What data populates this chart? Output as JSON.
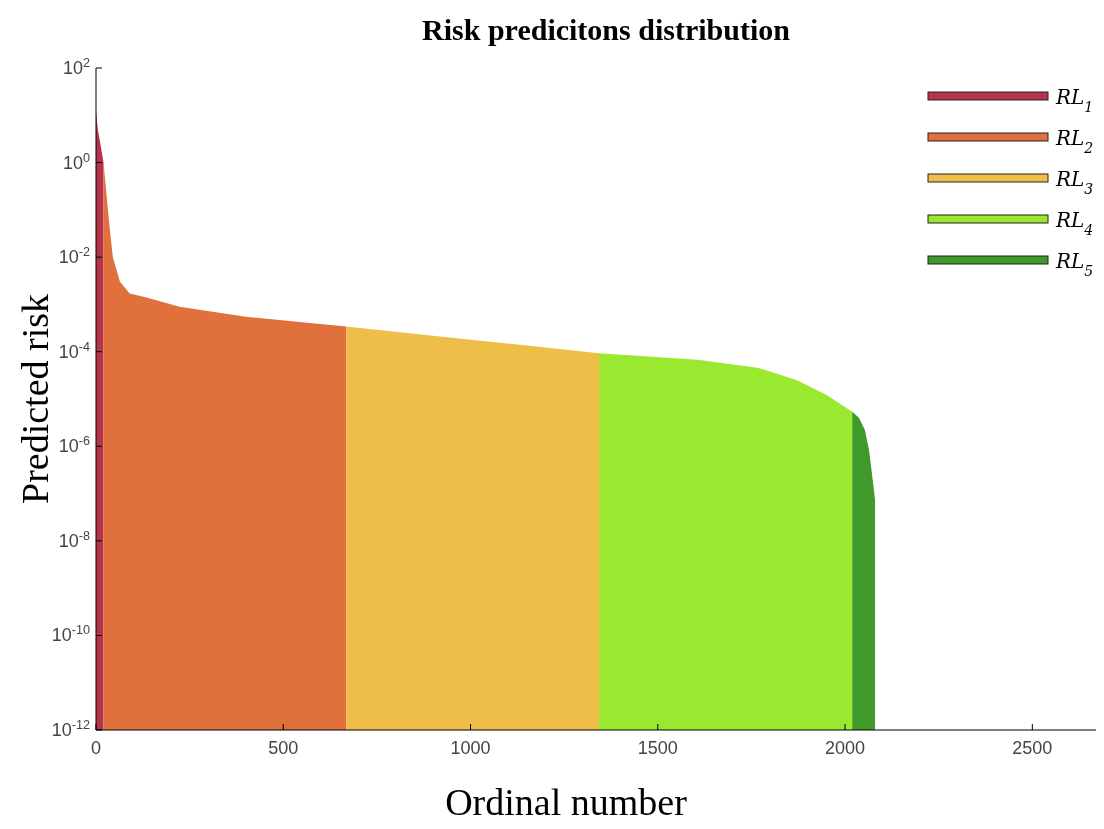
{
  "chart_data": {
    "type": "area",
    "title": "Risk predicitons distribution",
    "xlabel": "Ordinal number",
    "ylabel": "Predicted risk",
    "log": "y",
    "legend": "top right",
    "grid": false,
    "xlim": [
      0,
      2670
    ],
    "xticks": [
      0,
      500,
      1000,
      1500,
      2000,
      2500
    ],
    "ylim": [
      1e-12,
      100
    ],
    "yticks": [
      {
        "value": 100,
        "label": "10$^{2}$"
      },
      {
        "value": 1,
        "label": "10$^{0}$"
      },
      {
        "value": 0.01,
        "label": "10$^{-2}$"
      },
      {
        "value": 0.0001,
        "label": "10$^{-4}$"
      },
      {
        "value": 1e-06,
        "label": "10$^{-6}$"
      },
      {
        "value": 1e-08,
        "label": "10$^{-8}$"
      },
      {
        "value": 1e-10,
        "label": "10$^{-10}$"
      },
      {
        "value": 1e-12,
        "label": "10$^{-12}$"
      }
    ],
    "series": [
      {
        "name": "RL$_{1}$",
        "color": "#b5344c",
        "x": [
          0,
          5,
          10,
          20
        ],
        "values": [
          12,
          4.9,
          3.0,
          1.0
        ]
      },
      {
        "name": "RL$_{2}$",
        "color": "#e0703c",
        "x": [
          20,
          37,
          45,
          64,
          90,
          135,
          223,
          400,
          550,
          668
        ],
        "values": [
          1.0,
          0.038,
          0.01,
          0.003,
          0.0017,
          0.0014,
          0.00089,
          0.00055,
          0.00042,
          0.00034
        ]
      },
      {
        "name": "RL$_{3}$",
        "color": "#efbe48",
        "x": [
          668,
          1000,
          1343
        ],
        "values": [
          0.00034,
          0.00018,
          9.3e-05
        ]
      },
      {
        "name": "RL$_{4}$",
        "color": "#9ae830",
        "x": [
          1343,
          1606,
          1766,
          1872,
          1952,
          2019
        ],
        "values": [
          9.3e-05,
          6.8e-05,
          4.6e-05,
          2.5e-05,
          1.2e-05,
          5.4e-06
        ]
      },
      {
        "name": "RL$_{5}$",
        "color": "#3f9a2a",
        "x": [
          2019,
          2037,
          2053,
          2064,
          2074,
          2080
        ],
        "values": [
          5.4e-06,
          4e-06,
          2.2e-06,
          8.3e-07,
          1.9e-07,
          7.4e-08
        ]
      }
    ]
  }
}
